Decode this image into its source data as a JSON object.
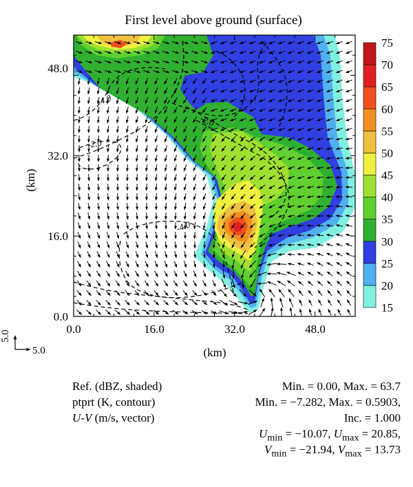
{
  "chart_data": {
    "type": "heatmap",
    "title": "First level above ground (surface)",
    "xlabel": "(km)",
    "ylabel": "(km)",
    "xlim": [
      0,
      56.0
    ],
    "ylim": [
      0,
      56.0
    ],
    "x_ticks": [
      0.0,
      16.0,
      32.0,
      48.0
    ],
    "x_tick_labels": [
      "0.0",
      "16.0",
      "32.0",
      "48.0"
    ],
    "y_ticks": [
      0.0,
      16.0,
      32.0,
      48.0
    ],
    "y_tick_labels": [
      "0.0",
      "16.0",
      "32.0",
      "48.0"
    ],
    "colorbar": {
      "levels": [
        15,
        20,
        25,
        30,
        35,
        40,
        45,
        50,
        55,
        60,
        65,
        70,
        75
      ],
      "colors": [
        "#80f0e0",
        "#50b0f0",
        "#2f3fe0",
        "#30b030",
        "#60d030",
        "#a0e030",
        "#f0f040",
        "#f0c040",
        "#f09020",
        "#f05020",
        "#e02020",
        "#c01818"
      ]
    },
    "contour_labels": [
      "-4.0",
      "-2.0",
      "-2.0",
      "-4.0"
    ],
    "vector_scale": {
      "x_label": "5.0",
      "y_label": "5.0"
    }
  },
  "legend": {
    "ref": "Ref. (dBZ, shaded)",
    "ptprt": "ptprt (K, contour)",
    "uv_italic": "U-V",
    "uv_rest": " (m/s, vector)"
  },
  "stats": {
    "ref_minmax": "Min. = 0.00, Max. = 63.7",
    "ptprt_minmax": "Min. = −7.282, Max. = 0.5903,",
    "inc": "Inc. = 1.000",
    "u_min_label": "U",
    "u_min_sub": "min",
    "u_min_val": " = −10.07, ",
    "u_max_label": "U",
    "u_max_sub": "max",
    "u_max_val": " = 20.85,",
    "v_min_label": "V",
    "v_min_sub": "min",
    "v_min_val": " = −21.94, ",
    "v_max_label": "V",
    "v_max_sub": "max",
    "v_max_val": " = 13.73"
  }
}
